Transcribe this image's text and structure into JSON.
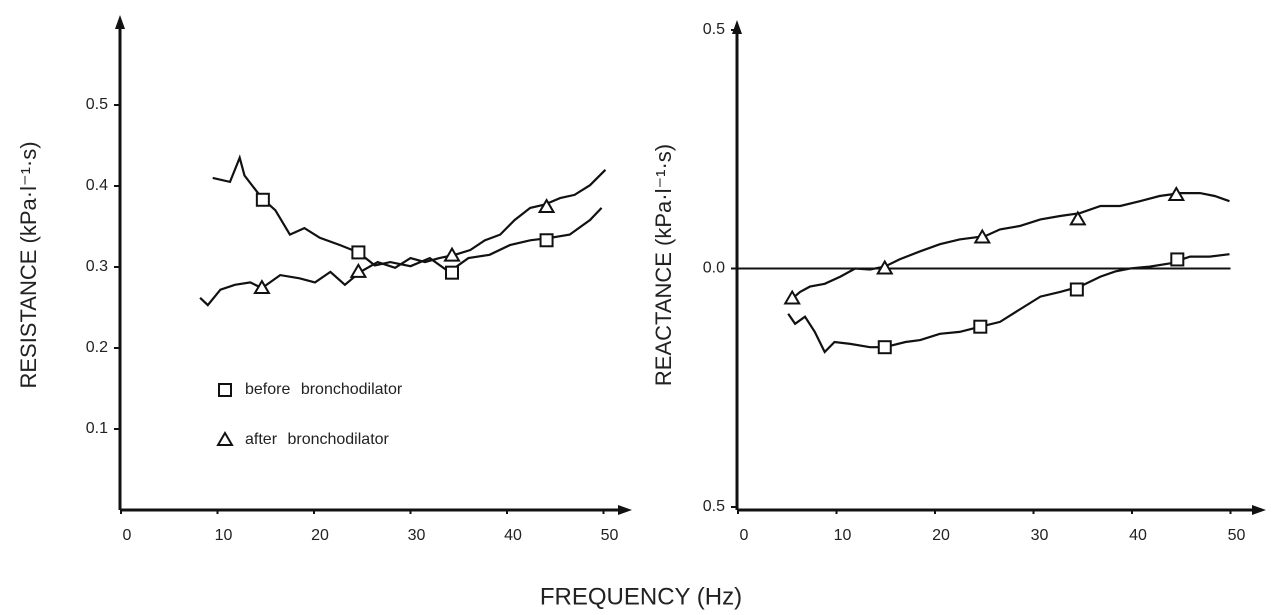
{
  "figure_xlabel": "FREQUENCY (Hz)",
  "chart_data": [
    {
      "type": "line",
      "ylabel": "RESISTANCE (kPa·l⁻¹·s)",
      "xlim": [
        0,
        50
      ],
      "xticks": [
        0,
        10,
        20,
        30,
        40,
        50
      ],
      "ylim": [
        0,
        0.6
      ],
      "yticks": [
        0.1,
        0.2,
        0.3,
        0.4,
        0.5
      ],
      "legend": "lower left",
      "series": [
        {
          "name": "before bronchodilator",
          "color": "#111111",
          "marker": "square",
          "x": [
            9.5,
            11.3,
            12.3,
            12.8,
            14.6,
            16,
            17.5,
            19,
            20.6,
            22.7,
            24.6,
            26.3,
            27.9,
            30,
            32,
            34,
            36,
            38.2,
            40.3,
            42.4,
            44.5,
            46.5,
            48.6,
            49.8
          ],
          "values": [
            0.41,
            0.405,
            0.435,
            0.413,
            0.385,
            0.37,
            0.34,
            0.348,
            0.336,
            0.327,
            0.318,
            0.302,
            0.306,
            0.301,
            0.311,
            0.294,
            0.311,
            0.315,
            0.327,
            0.333,
            0.336,
            0.34,
            0.358,
            0.373
          ],
          "marker_x": [
            14.7,
            24.6,
            34.3,
            44.1
          ],
          "marker_values": [
            0.383,
            0.318,
            0.293,
            0.333
          ]
        },
        {
          "name": "after bronchodilator",
          "color": "#111111",
          "marker": "triangle",
          "x": [
            8.2,
            9,
            10.3,
            11.8,
            13.4,
            14.6,
            16.5,
            18.5,
            20.1,
            21.7,
            23.2,
            24.8,
            26.6,
            28.4,
            30,
            31.5,
            33,
            34.6,
            36.2,
            37.7,
            39.3,
            40.8,
            42.4,
            43.9,
            45.5,
            47,
            48.6,
            50.2
          ],
          "values": [
            0.262,
            0.253,
            0.272,
            0.278,
            0.281,
            0.274,
            0.29,
            0.286,
            0.281,
            0.294,
            0.278,
            0.294,
            0.306,
            0.299,
            0.311,
            0.306,
            0.311,
            0.315,
            0.321,
            0.333,
            0.34,
            0.358,
            0.373,
            0.377,
            0.385,
            0.389,
            0.401,
            0.42
          ],
          "marker_x": [
            14.6,
            24.6,
            34.3,
            44.1
          ],
          "marker_values": [
            0.274,
            0.294,
            0.314,
            0.374
          ]
        }
      ]
    },
    {
      "type": "line",
      "ylabel": "REACTANCE (kPa·l⁻¹·s)",
      "xlim": [
        0,
        50
      ],
      "xticks": [
        0,
        10,
        20,
        30,
        40,
        50
      ],
      "ylim": [
        -0.5,
        0.5
      ],
      "yticks": [
        0.5,
        {
          "value": 0,
          "label": "0.0"
        },
        {
          "value": -0.5,
          "label": "0.5"
        }
      ],
      "zero_line": true,
      "series": [
        {
          "color": "#111111",
          "marker": "square",
          "x": [
            5.1,
            5.8,
            6.8,
            7.8,
            8.8,
            9.8,
            11.4,
            13.4,
            14.9,
            17,
            18.5,
            20.5,
            22.5,
            24.6,
            26.6,
            28.6,
            30.7,
            32.7,
            34.7,
            36.8,
            38.3,
            39.8,
            41.8,
            43.9,
            45.9,
            47.9,
            49.9
          ],
          "values": [
            -0.095,
            -0.116,
            -0.101,
            -0.133,
            -0.175,
            -0.154,
            -0.158,
            -0.165,
            -0.165,
            -0.154,
            -0.15,
            -0.137,
            -0.133,
            -0.122,
            -0.112,
            -0.086,
            -0.059,
            -0.049,
            -0.038,
            -0.017,
            -0.006,
            0,
            0.004,
            0.011,
            0.025,
            0.025,
            0.03
          ],
          "marker_x": [
            14.9,
            24.6,
            34.4,
            44.6
          ],
          "marker_values": [
            -0.165,
            -0.122,
            -0.044,
            0.019
          ]
        },
        {
          "color": "#111111",
          "marker": "triangle",
          "x": [
            5.5,
            6.3,
            7.3,
            8.8,
            10.4,
            11.9,
            13.4,
            14.9,
            16.4,
            18.5,
            20.5,
            22.5,
            25.1,
            26.6,
            28.6,
            30.7,
            32.7,
            34.7,
            36.8,
            38.8,
            40.8,
            42.8,
            44.9,
            46.9,
            48.4,
            49.9
          ],
          "values": [
            -0.063,
            -0.049,
            -0.038,
            -0.032,
            -0.017,
            0,
            -0.002,
            0.004,
            0.019,
            0.036,
            0.051,
            0.061,
            0.068,
            0.082,
            0.089,
            0.103,
            0.11,
            0.116,
            0.131,
            0.131,
            0.141,
            0.152,
            0.158,
            0.158,
            0.152,
            0.141
          ],
          "marker_x": [
            5.5,
            14.9,
            24.8,
            34.5,
            44.5
          ],
          "marker_values": [
            -0.063,
            0,
            0.065,
            0.103,
            0.154
          ]
        }
      ]
    }
  ]
}
